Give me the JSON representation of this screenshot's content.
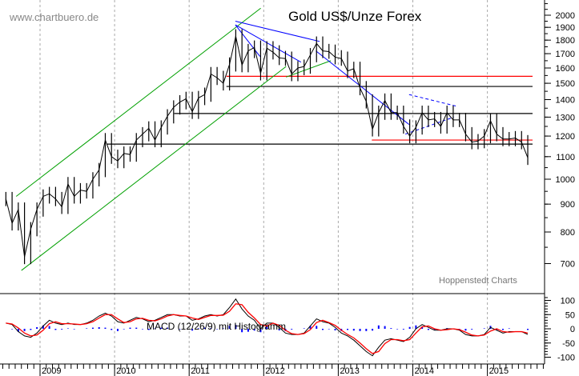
{
  "chart_data": {
    "type": "line",
    "title": "Gold US$/Unze Forex",
    "watermark": "www.chartbuero.de",
    "source": "Hoppenstedt Charts",
    "price_scale": "log",
    "ylim": [
      640,
      2100
    ],
    "y_ticks": [
      700,
      800,
      900,
      1000,
      1100,
      1200,
      1300,
      1400,
      1500,
      1600,
      1700,
      1800,
      1900,
      2000
    ],
    "x_ticks": [
      "2009",
      "2010",
      "2011",
      "2012",
      "2013",
      "2014",
      "2015"
    ],
    "grid": "vertical dashed",
    "start": "2008-07",
    "frequency": "monthly",
    "price": [
      920,
      830,
      880,
      720,
      810,
      880,
      930,
      940,
      920,
      890,
      980,
      930,
      955,
      950,
      1000,
      1040,
      1180,
      1100,
      1080,
      1115,
      1110,
      1180,
      1210,
      1240,
      1180,
      1245,
      1305,
      1355,
      1385,
      1405,
      1330,
      1410,
      1430,
      1560,
      1535,
      1500,
      1625,
      1830,
      1620,
      1720,
      1745,
      1565,
      1740,
      1710,
      1670,
      1665,
      1560,
      1600,
      1610,
      1690,
      1775,
      1720,
      1715,
      1675,
      1665,
      1580,
      1595,
      1470,
      1390,
      1235,
      1325,
      1395,
      1325,
      1325,
      1250,
      1200,
      1245,
      1325,
      1285,
      1290,
      1250,
      1325,
      1285,
      1285,
      1210,
      1170,
      1175,
      1200,
      1280,
      1210,
      1185,
      1185,
      1190,
      1170,
      1095
    ],
    "levels": [
      {
        "value": 1545,
        "from": 2011.5,
        "color": "#ff0000"
      },
      {
        "value": 1480,
        "from": 2011.5,
        "color": "#000000"
      },
      {
        "value": 1320,
        "from": 2010.8,
        "color": "#000000"
      },
      {
        "value": 1180,
        "from": 2013.45,
        "color": "#ff0000"
      },
      {
        "value": 1160,
        "from": 2009.9,
        "color": "#000000"
      }
    ],
    "trendlines": [
      {
        "from": [
          2008.75,
          680
        ],
        "to": [
          2012.3,
          1610
        ],
        "color": "#00a000",
        "dash": false
      },
      {
        "from": [
          2008.68,
          930
        ],
        "to": [
          2011.96,
          2060
        ],
        "color": "#00a000",
        "dash": false
      },
      {
        "from": [
          2012.3,
          1540
        ],
        "to": [
          2012.9,
          1650
        ],
        "color": "#00a000",
        "dash": false
      },
      {
        "from": [
          2011.62,
          1950
        ],
        "to": [
          2012.75,
          1790
        ],
        "color": "#0000ff",
        "dash": false
      },
      {
        "from": [
          2011.62,
          1920
        ],
        "to": [
          2012.5,
          1640
        ],
        "color": "#0000ff",
        "dash": false
      },
      {
        "from": [
          2011.62,
          1920
        ],
        "to": [
          2011.95,
          1680
        ],
        "color": "#0000ff",
        "dash": false
      },
      {
        "from": [
          2012.7,
          1720
        ],
        "to": [
          2013.95,
          1260
        ],
        "color": "#0000ff",
        "dash": false
      },
      {
        "from": [
          2013.95,
          1430
        ],
        "to": [
          2014.6,
          1360
        ],
        "color": "#0000ff",
        "dash": true
      },
      {
        "from": [
          2013.9,
          1210
        ],
        "to": [
          2014.55,
          1300
        ],
        "color": "#0000ff",
        "dash": true
      }
    ],
    "macd": {
      "label": "MACD (12/26/9) mit Histogramm",
      "ylim": [
        -110,
        120
      ],
      "y_ticks": [
        100,
        50,
        0,
        -50,
        -100
      ],
      "macd": [
        20,
        15,
        -10,
        -25,
        -30,
        -15,
        10,
        30,
        20,
        15,
        20,
        15,
        15,
        20,
        30,
        45,
        55,
        45,
        25,
        20,
        30,
        40,
        35,
        25,
        30,
        40,
        50,
        50,
        45,
        45,
        30,
        35,
        45,
        50,
        45,
        50,
        75,
        105,
        70,
        45,
        30,
        0,
        20,
        20,
        5,
        -15,
        -20,
        -20,
        -15,
        10,
        35,
        25,
        20,
        5,
        -15,
        -25,
        -40,
        -60,
        -80,
        -95,
        -65,
        -40,
        -35,
        -40,
        -45,
        -30,
        0,
        15,
        5,
        -5,
        -5,
        0,
        0,
        -5,
        -20,
        -25,
        -25,
        -20,
        5,
        -5,
        -15,
        -10,
        -10,
        -10,
        -20
      ],
      "signal": [
        20,
        17,
        3,
        -15,
        -25,
        -22,
        -5,
        18,
        25,
        18,
        18,
        17,
        15,
        18,
        25,
        38,
        50,
        50,
        35,
        22,
        25,
        35,
        37,
        30,
        28,
        35,
        45,
        50,
        47,
        45,
        38,
        33,
        40,
        47,
        47,
        48,
        62,
        88,
        85,
        58,
        38,
        15,
        10,
        20,
        12,
        -5,
        -17,
        -20,
        -17,
        -3,
        22,
        30,
        22,
        12,
        -5,
        -20,
        -32,
        -50,
        -70,
        -87,
        -80,
        -52,
        -38,
        -38,
        -42,
        -38,
        -15,
        7,
        10,
        0,
        -5,
        -3,
        0,
        -3,
        -12,
        -22,
        -25,
        -22,
        -8,
        0,
        -10,
        -12,
        -10,
        -10,
        -15
      ],
      "colors": {
        "macd": "#000000",
        "signal": "#ff0000",
        "histogram": "#0000ff"
      }
    }
  }
}
